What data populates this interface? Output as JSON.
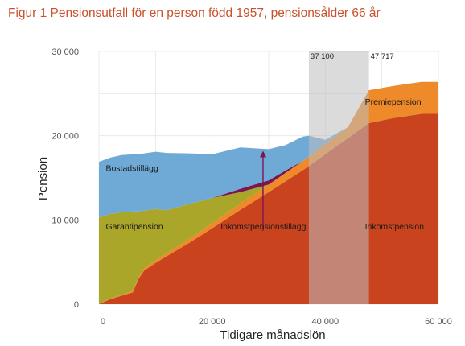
{
  "figure": {
    "title": "Figur 1 Pensionsutfall för en person född 1957, pensionsålder 66 år"
  },
  "colors": {
    "inkomstpension": "#c9431f",
    "premiepension": "#ee8a2a",
    "garantipension": "#a9a62a",
    "inkomstpensionstillagg": "#7a1650",
    "bostadstillagg": "#6fa9d6",
    "band": "#bdbdbd",
    "grid": "#e6e6e6"
  },
  "chart_data": {
    "type": "area",
    "stacked": true,
    "title": "",
    "xlabel": "Tidigare månadslön",
    "ylabel": "Pension",
    "xlim": [
      0,
      60000
    ],
    "ylim": [
      0,
      30000
    ],
    "x_ticks": [
      0,
      20000,
      40000,
      60000
    ],
    "x_tick_labels": [
      "0",
      "20 000",
      "40 000",
      "60 000"
    ],
    "y_ticks": [
      0,
      10000,
      20000,
      30000
    ],
    "y_tick_labels": [
      "0",
      "10 000",
      "20 000",
      "30 000"
    ],
    "grid": true,
    "x": [
      0,
      1000,
      2000,
      4000,
      6000,
      7000,
      8000,
      10000,
      12000,
      16000,
      20000,
      25000,
      30000,
      33000,
      36000,
      37100,
      40000,
      44000,
      47717,
      52000,
      57000,
      60000
    ],
    "series": [
      {
        "name": "Inkomstpension",
        "key": "inkomstpension",
        "values": [
          0,
          300,
          600,
          1000,
          1400,
          3000,
          4000,
          4900,
          5700,
          7300,
          9000,
          11200,
          13300,
          14600,
          15900,
          16400,
          17800,
          19700,
          21500,
          22100,
          22600,
          22600
        ]
      },
      {
        "name": "Premiepension",
        "key": "premiepension",
        "values": [
          0,
          30,
          60,
          120,
          180,
          210,
          240,
          300,
          360,
          480,
          600,
          750,
          900,
          990,
          1080,
          1110,
          1200,
          1320,
          3900,
          3800,
          3800,
          3800
        ]
      },
      {
        "name": "Garantipension",
        "key": "garantipension",
        "values": [
          10300,
          10170,
          10040,
          9780,
          9420,
          7790,
          6860,
          6100,
          5090,
          4120,
          3000,
          1350,
          0,
          0,
          0,
          0,
          0,
          0,
          0,
          0,
          0,
          0
        ]
      },
      {
        "name": "Inkomstpensionstillägg",
        "key": "inkomstpensionstillagg",
        "values": [
          0,
          0,
          0,
          0,
          0,
          0,
          0,
          0,
          0,
          0,
          0,
          400,
          500,
          300,
          0,
          0,
          0,
          0,
          0,
          0,
          0,
          0
        ]
      },
      {
        "name": "Bostadstillägg",
        "key": "bostadstillagg",
        "values": [
          6600,
          6650,
          6700,
          6800,
          6800,
          6800,
          6800,
          6800,
          6800,
          6000,
          5200,
          4900,
          3700,
          3000,
          2900,
          2500,
          500,
          0,
          0,
          0,
          0,
          0
        ]
      }
    ],
    "highlight_band": {
      "x0": 37100,
      "x1": 47717,
      "labels": [
        "37 100",
        "47 717"
      ]
    },
    "annotations": [
      {
        "text": "Bostadstillägg",
        "series": "bostadstillagg",
        "x": 1200,
        "y": 15800
      },
      {
        "text": "Garantipension",
        "series": "garantipension",
        "x": 1200,
        "y": 8900
      },
      {
        "text": "Inkomstpensionstillägg",
        "series": "inkomstpensionstillagg",
        "x": 21500,
        "y": 8900,
        "arrow_from": [
          29000,
          8700
        ],
        "arrow_to": [
          29000,
          18200
        ]
      },
      {
        "text": "Premiepension",
        "series": "premiepension",
        "x": 47000,
        "y": 23700
      },
      {
        "text": "Inkomstpension",
        "series": "inkomstpension",
        "x": 47000,
        "y": 8900
      }
    ]
  }
}
